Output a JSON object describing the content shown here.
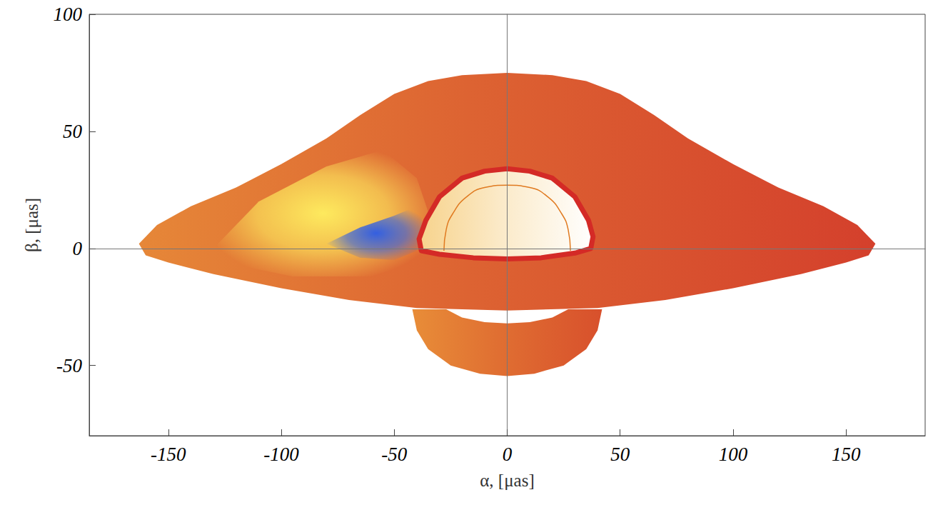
{
  "chart_data": {
    "type": "area",
    "x_label": "α, [μas]",
    "y_label": "β, [μas]",
    "xlim": [
      -185,
      185
    ],
    "ylim": [
      -80,
      100
    ],
    "xticks": [
      -150,
      -100,
      -50,
      0,
      50,
      100,
      150
    ],
    "yticks": [
      -50,
      0,
      50,
      100
    ],
    "grid": false,
    "series": [
      {
        "type": "area",
        "color": "#d8502c",
        "x": [
          -42,
          -40,
          -35,
          -25,
          -12,
          0,
          12,
          25,
          35,
          40,
          42,
          27,
          20,
          10,
          0,
          -10,
          -20,
          -27
        ],
        "values": [
          -26,
          -35,
          -43,
          -50,
          -53.5,
          -54.5,
          -53.5,
          -50,
          -43,
          -35,
          -26,
          -26,
          -29.5,
          -31.5,
          -32,
          -31.5,
          -29.5,
          -26
        ]
      },
      {
        "type": "area",
        "color": "#d4402c",
        "x": [
          -163,
          -155,
          -140,
          -120,
          -100,
          -80,
          -65,
          -50,
          -35,
          -20,
          0,
          20,
          35,
          50,
          65,
          80,
          100,
          120,
          140,
          155,
          163,
          160,
          150,
          130,
          100,
          70,
          40,
          0,
          -40,
          -70,
          -100,
          -130,
          -150,
          -160
        ],
        "values": [
          2,
          10,
          18,
          26,
          36,
          47,
          57,
          66,
          71.5,
          74,
          75,
          74,
          71.5,
          66,
          57,
          47,
          36,
          26,
          18,
          10,
          2,
          -3,
          -6,
          -11,
          -17,
          -22,
          -25.5,
          -26.5,
          -25.5,
          -22,
          -17,
          -11,
          -6,
          -3
        ]
      },
      {
        "type": "glow",
        "color": "#fff060",
        "x": [
          -130,
          -110,
          -80,
          -55,
          -40,
          -33,
          -38,
          -60,
          -95,
          -125
        ],
        "values": [
          0,
          20,
          35,
          42,
          30,
          10,
          -5,
          -12,
          -12,
          -6
        ]
      },
      {
        "type": "glow",
        "color": "#2a5ae8",
        "x": [
          -80,
          -65,
          -50,
          -40,
          -36,
          -40,
          -50,
          -65
        ],
        "values": [
          2,
          9,
          14,
          18,
          8,
          -1,
          -5,
          -4
        ]
      },
      {
        "type": "area",
        "color": "#ffffff",
        "line_style": "solid",
        "x": [
          -38,
          -39,
          -36,
          -30,
          -20,
          -10,
          0,
          10,
          20,
          30,
          36,
          38,
          37,
          30,
          15,
          0,
          -15,
          -30
        ],
        "values": [
          -1,
          4,
          12,
          22,
          30,
          33,
          34,
          33,
          30,
          22,
          12,
          5,
          0,
          -2,
          -4,
          -4.5,
          -4,
          -2.5
        ]
      },
      {
        "type": "line",
        "color": "#e07a20",
        "x": [
          -28,
          -27,
          -24,
          -18,
          -10,
          0,
          10,
          18,
          24,
          27,
          28
        ],
        "values": [
          -1,
          8,
          15,
          22,
          26,
          27,
          26,
          22,
          15,
          8,
          -1
        ]
      }
    ]
  }
}
